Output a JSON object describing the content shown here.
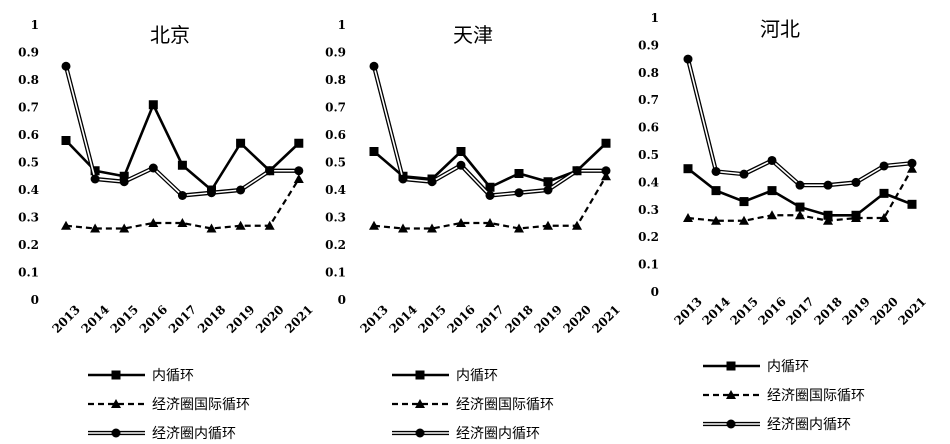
{
  "chart_data": [
    {
      "type": "line",
      "title": "北京",
      "categories": [
        "2013",
        "2014",
        "2015",
        "2016",
        "2017",
        "2018",
        "2019",
        "2020",
        "2021"
      ],
      "yticks": [
        "0",
        "0.1",
        "0.2",
        "0.3",
        "0.4",
        "0.5",
        "0.6",
        "0.7",
        "0.8",
        "0.9",
        "1"
      ],
      "ylim": [
        0,
        1
      ],
      "grid": false,
      "legend_position": "bottom",
      "series": [
        {
          "name": "内循环",
          "style": "solid-square",
          "values": [
            0.58,
            0.47,
            0.45,
            0.71,
            0.49,
            0.4,
            0.57,
            0.47,
            0.57
          ]
        },
        {
          "name": "经济圈国际循环",
          "style": "dashed-triangle",
          "values": [
            0.27,
            0.26,
            0.26,
            0.28,
            0.28,
            0.26,
            0.27,
            0.27,
            0.44
          ]
        },
        {
          "name": "经济圈内循环",
          "style": "double-circle",
          "values": [
            0.85,
            0.44,
            0.43,
            0.48,
            0.38,
            0.39,
            0.4,
            0.47,
            0.47
          ]
        }
      ]
    },
    {
      "type": "line",
      "title": "天津",
      "categories": [
        "2013",
        "2014",
        "2015",
        "2016",
        "2017",
        "2018",
        "2019",
        "2020",
        "2021"
      ],
      "yticks": [
        "0",
        "0.1",
        "0.2",
        "0.3",
        "0.4",
        "0.5",
        "0.6",
        "0.7",
        "0.8",
        "0.9",
        "1"
      ],
      "ylim": [
        0,
        1
      ],
      "grid": false,
      "legend_position": "bottom",
      "series": [
        {
          "name": "内循环",
          "style": "solid-square",
          "values": [
            0.54,
            0.45,
            0.44,
            0.54,
            0.41,
            0.46,
            0.43,
            0.47,
            0.57
          ]
        },
        {
          "name": "经济圈国际循环",
          "style": "dashed-triangle",
          "values": [
            0.27,
            0.26,
            0.26,
            0.28,
            0.28,
            0.26,
            0.27,
            0.27,
            0.45
          ]
        },
        {
          "name": "经济圈内循环",
          "style": "double-circle",
          "values": [
            0.85,
            0.44,
            0.43,
            0.49,
            0.38,
            0.39,
            0.4,
            0.47,
            0.47
          ]
        }
      ]
    },
    {
      "type": "line",
      "title": "河北",
      "categories": [
        "2013",
        "2014",
        "2015",
        "2016",
        "2017",
        "2018",
        "2019",
        "2020",
        "2021"
      ],
      "yticks": [
        "0",
        "0.1",
        "0.2",
        "0.3",
        "0.4",
        "0.5",
        "0.6",
        "0.7",
        "0.8",
        "0.9",
        "1"
      ],
      "ylim": [
        0,
        1
      ],
      "grid": false,
      "legend_position": "bottom",
      "series": [
        {
          "name": "内循环",
          "style": "solid-square",
          "values": [
            0.45,
            0.37,
            0.33,
            0.37,
            0.31,
            0.28,
            0.28,
            0.36,
            0.32
          ]
        },
        {
          "name": "经济圈国际循环",
          "style": "dashed-triangle",
          "values": [
            0.27,
            0.26,
            0.26,
            0.28,
            0.28,
            0.26,
            0.27,
            0.27,
            0.45
          ]
        },
        {
          "name": "经济圈内循环",
          "style": "double-circle",
          "values": [
            0.85,
            0.44,
            0.43,
            0.48,
            0.39,
            0.39,
            0.4,
            0.46,
            0.47
          ]
        }
      ]
    }
  ]
}
